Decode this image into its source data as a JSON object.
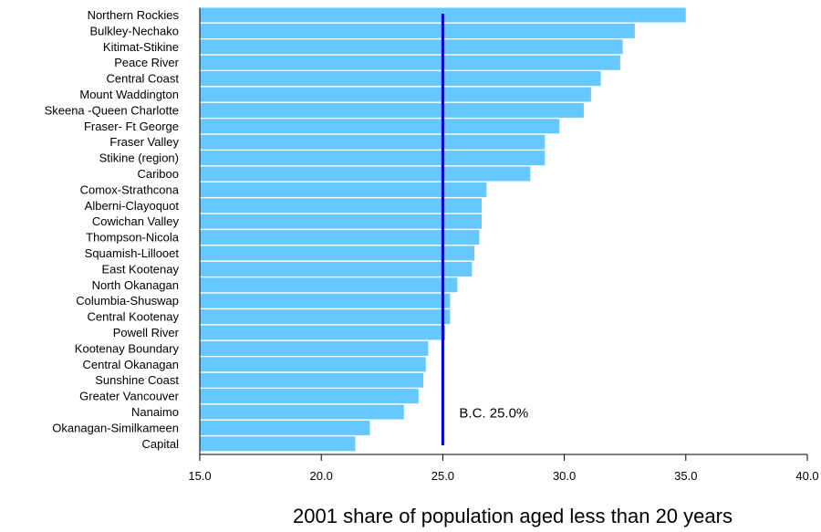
{
  "chart_data": {
    "type": "bar",
    "orientation": "horizontal",
    "categories": [
      "Northern Rockies",
      "Bulkley-Nechako",
      "Kitimat-Stikine",
      "Peace River",
      "Central Coast",
      "Mount Waddington",
      "Skeena -Queen Charlotte",
      "Fraser- Ft George",
      "Fraser Valley",
      "Stikine (region)",
      "Cariboo",
      "Comox-Strathcona",
      "Alberni-Clayoquot",
      "Cowichan Valley",
      "Thompson-Nicola",
      "Squamish-Lillooet",
      "East Kootenay",
      "North Okanagan",
      "Columbia-Shuswap",
      "Central Kootenay",
      "Powell River",
      "Kootenay Boundary",
      "Central Okanagan",
      "Sunshine Coast",
      "Greater Vancouver",
      "Nanaimo",
      "Okanagan-Similkameen",
      "Capital"
    ],
    "values": [
      35.0,
      32.9,
      32.4,
      32.3,
      31.5,
      31.1,
      30.8,
      29.8,
      29.2,
      29.2,
      28.6,
      26.8,
      26.6,
      26.6,
      26.5,
      26.3,
      26.2,
      25.6,
      25.3,
      25.3,
      25.1,
      24.4,
      24.3,
      24.2,
      24.0,
      23.4,
      22.0,
      21.4
    ],
    "xlim": [
      15.0,
      40.0
    ],
    "xticks": [
      "15.0",
      "20.0",
      "25.0",
      "30.0",
      "35.0",
      "40.0"
    ],
    "xtick_values": [
      15,
      20,
      25,
      30,
      35,
      40
    ],
    "xlabel": "2001 share of population aged less than 20 years",
    "reference_line": {
      "value": 25.0,
      "label": "B.C. 25.0%",
      "color": "#0000cc"
    },
    "bar_color": "#66c8ff",
    "grid": false,
    "legend": "none"
  }
}
